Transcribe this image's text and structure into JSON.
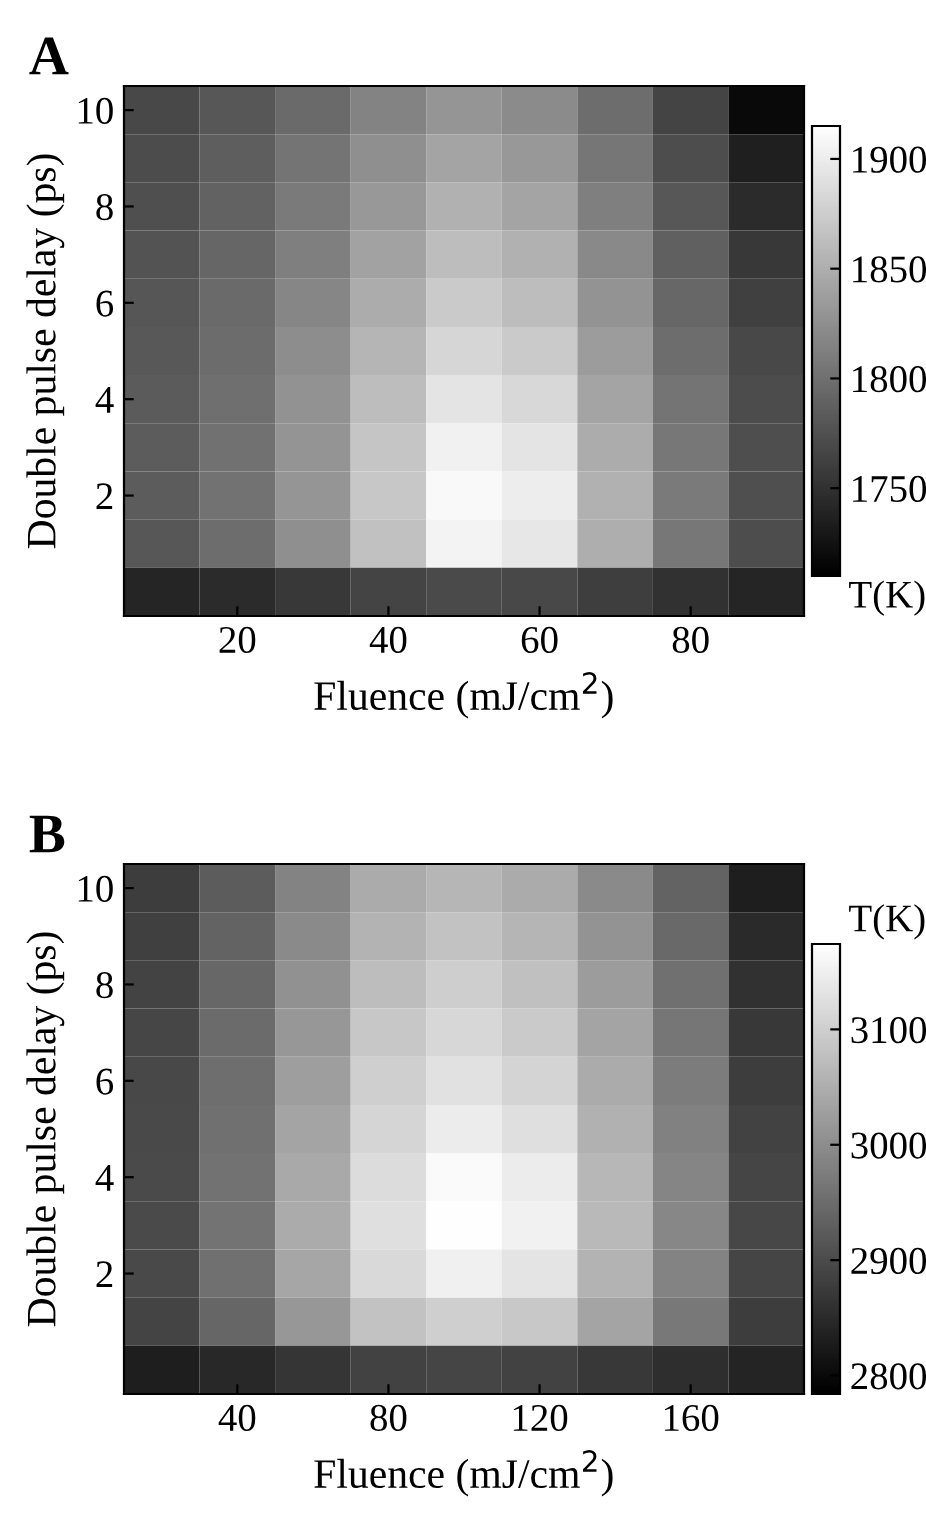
{
  "chart_data": [
    {
      "type": "heatmap",
      "title": "A",
      "xlabel": "Fluence (mJ/cm$^{2}$)",
      "ylabel": "Double pulse delay (ps)",
      "clabel": "T(K)",
      "categories": [
        null,
        "20",
        null,
        "40",
        null,
        "60",
        null,
        "80",
        null
      ],
      "y_categories": [
        "10",
        null,
        "8",
        null,
        "6",
        null,
        "4",
        null,
        "2",
        null,
        null
      ],
      "clim": [
        1710,
        1915
      ],
      "cticks": [
        1750,
        1800,
        1850,
        1900
      ],
      "cells": [
        [
          1768,
          1780,
          1795,
          1815,
          1830,
          1822,
          1798,
          1765,
          1718
        ],
        [
          1771,
          1786,
          1803,
          1825,
          1842,
          1832,
          1805,
          1772,
          1735
        ],
        [
          1774,
          1789,
          1808,
          1832,
          1852,
          1842,
          1812,
          1780,
          1745
        ],
        [
          1777,
          1792,
          1812,
          1840,
          1862,
          1852,
          1820,
          1787,
          1755
        ],
        [
          1779,
          1795,
          1818,
          1848,
          1872,
          1862,
          1828,
          1793,
          1762
        ],
        [
          1781,
          1797,
          1823,
          1855,
          1882,
          1872,
          1835,
          1798,
          1768
        ],
        [
          1783,
          1799,
          1827,
          1862,
          1893,
          1883,
          1842,
          1803,
          1771
        ],
        [
          1784,
          1801,
          1829,
          1868,
          1903,
          1893,
          1848,
          1806,
          1773
        ],
        [
          1784,
          1802,
          1830,
          1870,
          1910,
          1900,
          1852,
          1808,
          1774
        ],
        [
          1780,
          1798,
          1825,
          1865,
          1905,
          1895,
          1850,
          1806,
          1772
        ],
        [
          1740,
          1745,
          1755,
          1765,
          1770,
          1768,
          1760,
          1750,
          1740
        ]
      ]
    },
    {
      "type": "heatmap",
      "title": "B",
      "xlabel": "Fluence (mJ/cm$^{2}$)",
      "ylabel": "Double pulse delay (ps)",
      "clabel": "T(K)",
      "categories": [
        null,
        "40",
        null,
        "80",
        null,
        "120",
        null,
        "160",
        null
      ],
      "y_categories": [
        "10",
        null,
        "8",
        null,
        "6",
        null,
        "4",
        null,
        "2",
        null,
        null
      ],
      "clim": [
        2784,
        3174
      ],
      "cticks": [
        2800,
        2900,
        3000,
        3100
      ],
      "cells": [
        [
          2878,
          2925,
          2985,
          3045,
          3062,
          3045,
          2995,
          2935,
          2830
        ],
        [
          2882,
          2935,
          2995,
          3058,
          3080,
          3060,
          3008,
          2945,
          2848
        ],
        [
          2887,
          2942,
          3005,
          3072,
          3098,
          3078,
          3022,
          2955,
          2860
        ],
        [
          2891,
          2948,
          3015,
          3088,
          3112,
          3092,
          3035,
          2965,
          2870
        ],
        [
          2894,
          2952,
          3025,
          3100,
          3128,
          3108,
          3045,
          2974,
          2878
        ],
        [
          2896,
          2956,
          3034,
          3110,
          3145,
          3125,
          3055,
          2982,
          2885
        ],
        [
          2898,
          2959,
          3042,
          3120,
          3165,
          3145,
          3063,
          2988,
          2890
        ],
        [
          2898,
          2960,
          3045,
          3125,
          3172,
          3152,
          3066,
          2990,
          2893
        ],
        [
          2896,
          2956,
          3038,
          3115,
          3150,
          3132,
          3058,
          2985,
          2890
        ],
        [
          2888,
          2940,
          3015,
          3080,
          3100,
          3090,
          3035,
          2968,
          2878
        ],
        [
          2830,
          2845,
          2865,
          2885,
          2890,
          2885,
          2870,
          2855,
          2840
        ]
      ]
    }
  ]
}
